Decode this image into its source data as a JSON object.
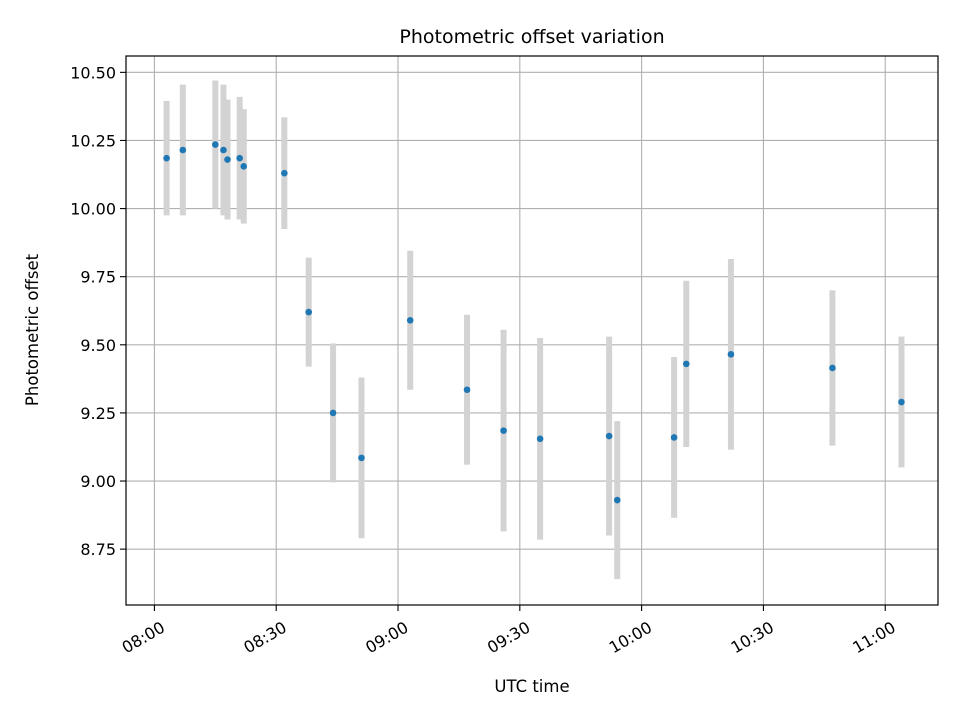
{
  "chart_data": {
    "type": "scatter",
    "title": "Photometric offset variation",
    "xlabel": "UTC time",
    "ylabel": "Photometric offset",
    "x_ticks": [
      "08:00",
      "08:30",
      "09:00",
      "09:30",
      "10:00",
      "10:30",
      "11:00"
    ],
    "y_ticks": [
      "8.75",
      "9.00",
      "9.25",
      "9.50",
      "9.75",
      "10.00",
      "10.25",
      "10.50"
    ],
    "xlim": [
      "07:53",
      "11:13"
    ],
    "ylim": [
      8.545,
      10.56
    ],
    "grid": true,
    "marker_color": "#1f77b4",
    "errorbar_color": "#d3d3d3",
    "series": [
      {
        "points": [
          {
            "x": "08:03",
            "y": 10.185,
            "err": 0.21
          },
          {
            "x": "08:07",
            "y": 10.215,
            "err": 0.24
          },
          {
            "x": "08:15",
            "y": 10.235,
            "err": 0.235
          },
          {
            "x": "08:17",
            "y": 10.215,
            "err": 0.24
          },
          {
            "x": "08:18",
            "y": 10.18,
            "err": 0.22
          },
          {
            "x": "08:21",
            "y": 10.185,
            "err": 0.225
          },
          {
            "x": "08:22",
            "y": 10.155,
            "err": 0.21
          },
          {
            "x": "08:32",
            "y": 10.13,
            "err": 0.205
          },
          {
            "x": "08:38",
            "y": 9.62,
            "err": 0.2
          },
          {
            "x": "08:44",
            "y": 9.25,
            "err": 0.255
          },
          {
            "x": "08:51",
            "y": 9.085,
            "err": 0.295
          },
          {
            "x": "09:03",
            "y": 9.59,
            "err": 0.255
          },
          {
            "x": "09:17",
            "y": 9.335,
            "err": 0.275
          },
          {
            "x": "09:26",
            "y": 9.185,
            "err": 0.37
          },
          {
            "x": "09:35",
            "y": 9.155,
            "err": 0.37
          },
          {
            "x": "09:52",
            "y": 9.165,
            "err": 0.365
          },
          {
            "x": "09:54",
            "y": 8.93,
            "err": 0.29
          },
          {
            "x": "10:08",
            "y": 9.16,
            "err": 0.295
          },
          {
            "x": "10:11",
            "y": 9.43,
            "err": 0.305
          },
          {
            "x": "10:22",
            "y": 9.465,
            "err": 0.35
          },
          {
            "x": "10:47",
            "y": 9.415,
            "err": 0.285
          },
          {
            "x": "11:04",
            "y": 9.29,
            "err": 0.24
          }
        ]
      }
    ]
  }
}
